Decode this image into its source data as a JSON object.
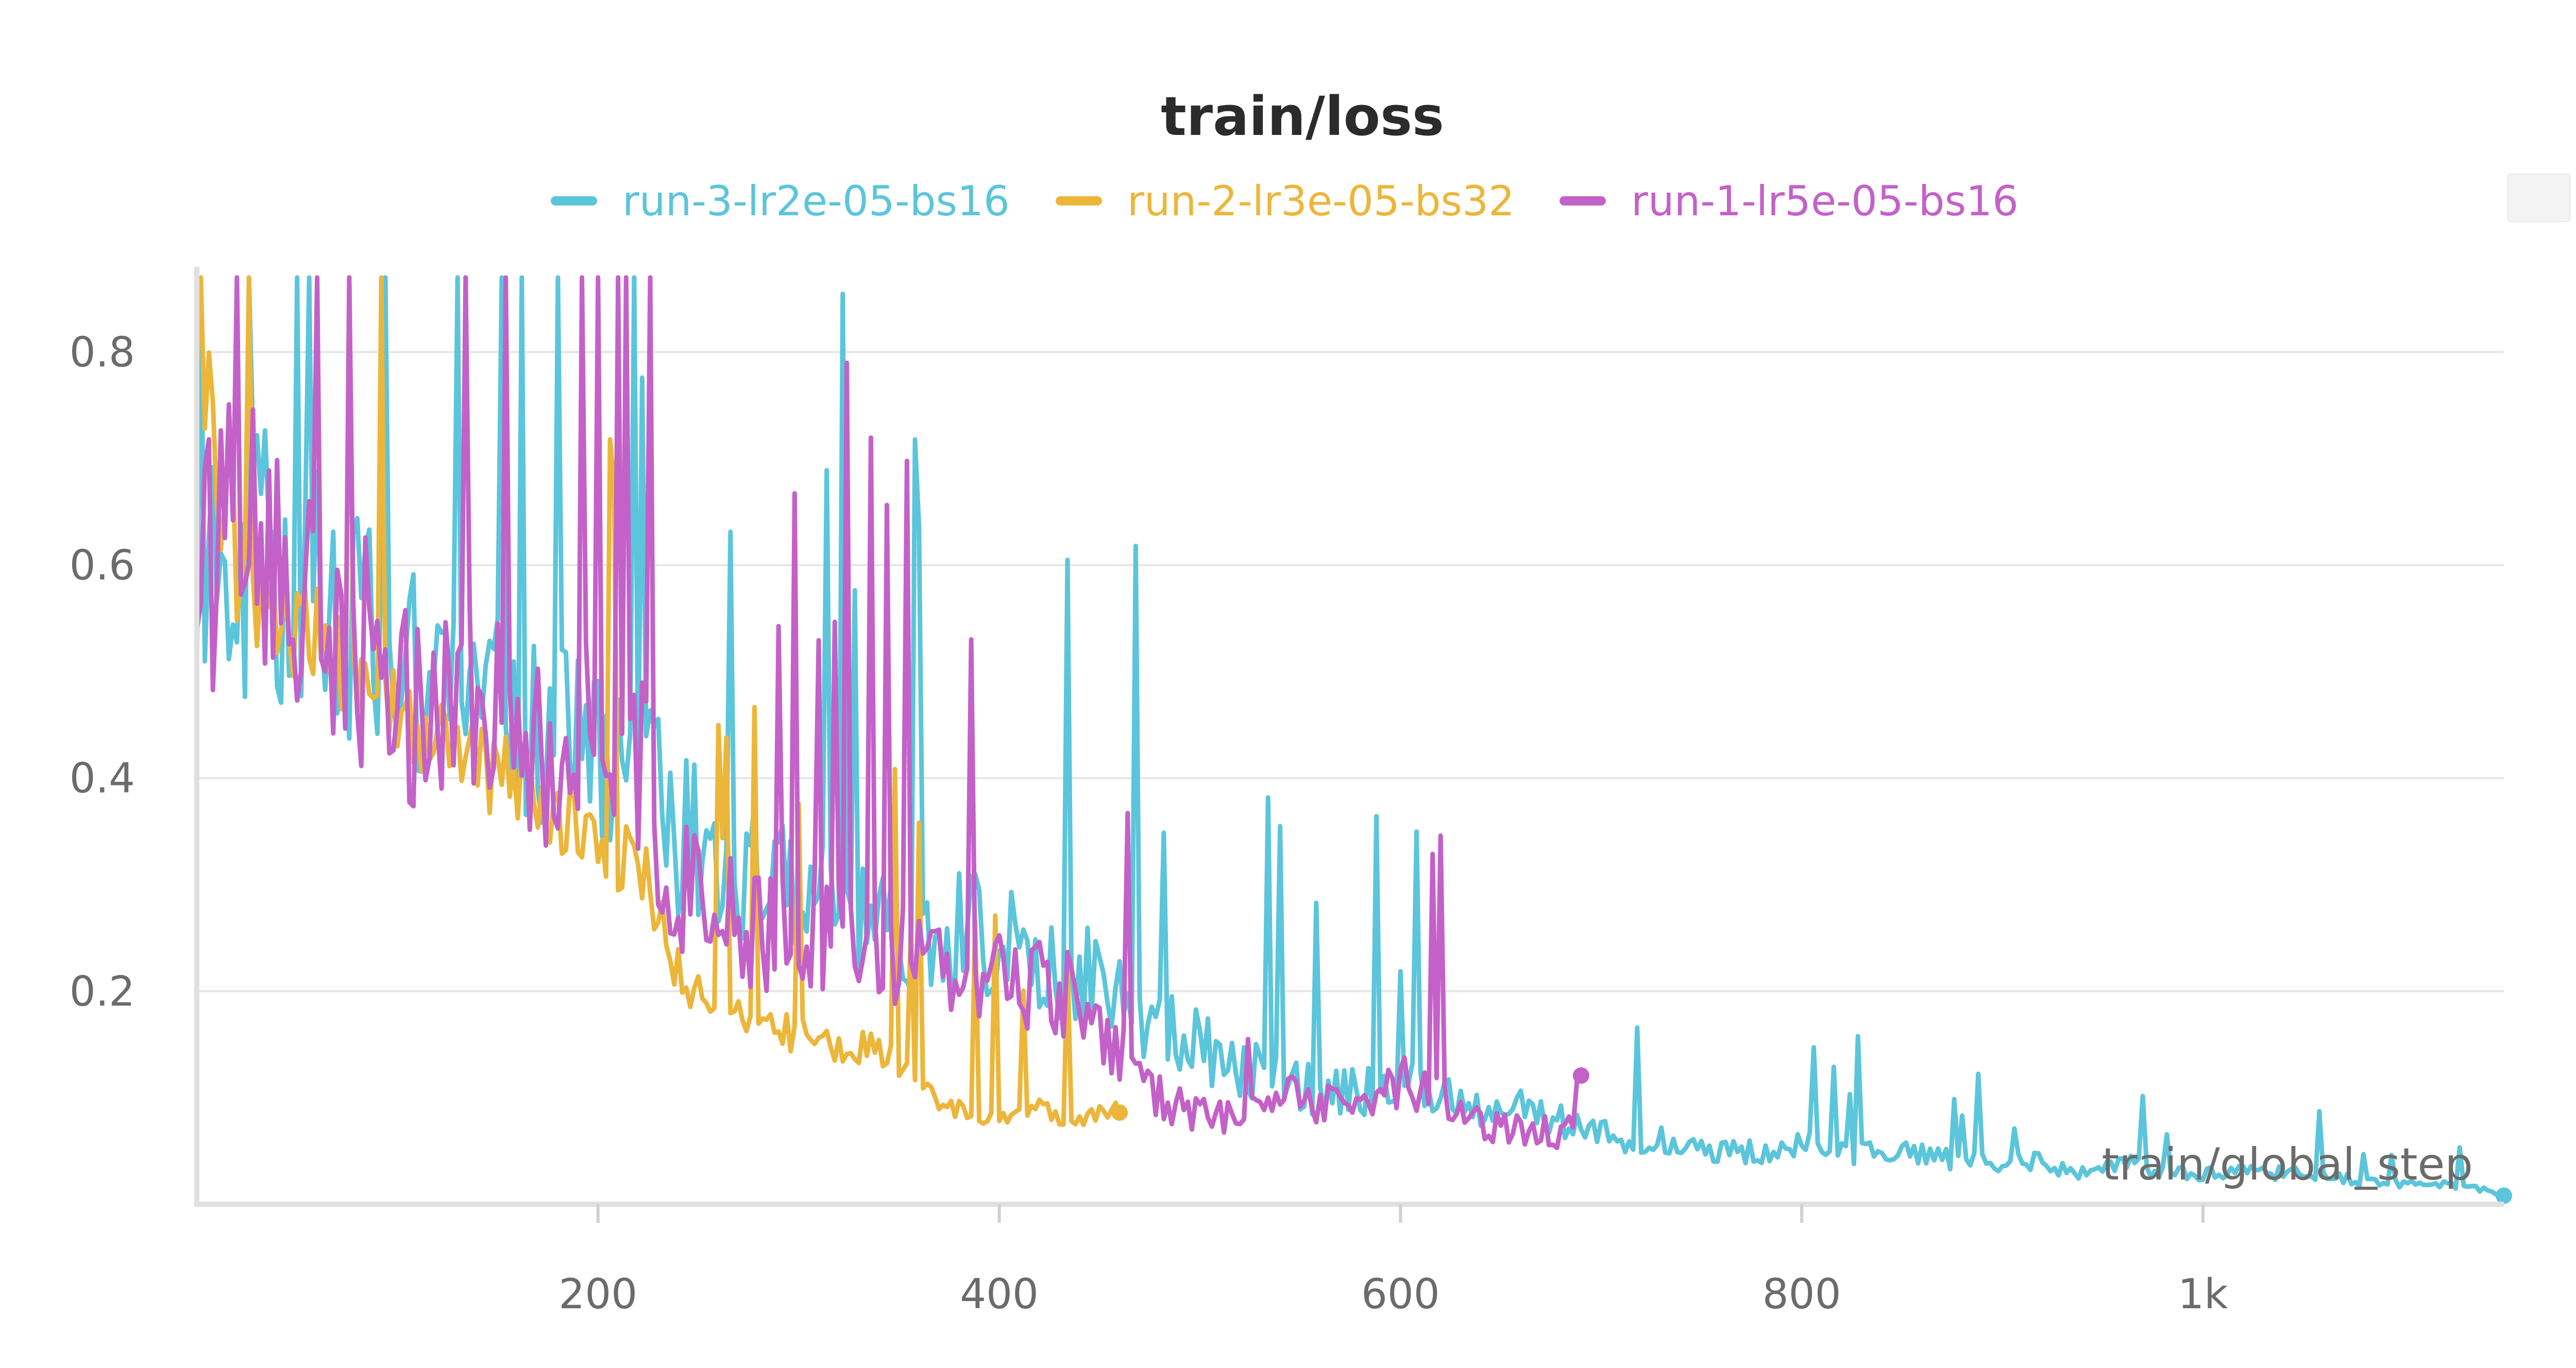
{
  "chart_data": {
    "type": "line",
    "title": "train/loss",
    "xlabel": "train/global_step",
    "ylabel": "",
    "xlim": [
      0,
      1150
    ],
    "ylim": [
      0,
      0.88
    ],
    "x_ticks": [
      200,
      400,
      600,
      800,
      1000
    ],
    "x_tick_labels": [
      "200",
      "400",
      "600",
      "800",
      "1k"
    ],
    "y_ticks": [
      0.2,
      0.4,
      0.6,
      0.8
    ],
    "y_tick_labels": [
      "0.2",
      "0.4",
      "0.6",
      "0.8"
    ],
    "grid": true,
    "legend_position": "top-center",
    "series": [
      {
        "name": "run-3-lr2e-05-bs16",
        "color": "#5bc5db",
        "x": [
          0,
          20,
          40,
          60,
          80,
          100,
          120,
          140,
          160,
          180,
          200,
          220,
          240,
          260,
          280,
          300,
          320,
          340,
          360,
          380,
          400,
          420,
          440,
          460,
          480,
          500,
          520,
          540,
          560,
          580,
          600,
          620,
          640,
          660,
          680,
          700,
          720,
          740,
          760,
          780,
          800,
          820,
          840,
          860,
          880,
          900,
          920,
          940,
          960,
          980,
          1000,
          1020,
          1040,
          1060,
          1080,
          1100,
          1120,
          1150
        ],
        "y": [
          0.62,
          0.63,
          0.6,
          0.58,
          0.54,
          0.52,
          0.5,
          0.47,
          0.45,
          0.44,
          0.42,
          0.4,
          0.36,
          0.33,
          0.32,
          0.29,
          0.3,
          0.27,
          0.26,
          0.27,
          0.25,
          0.23,
          0.22,
          0.2,
          0.17,
          0.15,
          0.13,
          0.12,
          0.11,
          0.11,
          0.12,
          0.1,
          0.09,
          0.09,
          0.08,
          0.07,
          0.06,
          0.06,
          0.05,
          0.05,
          0.06,
          0.05,
          0.05,
          0.05,
          0.04,
          0.04,
          0.04,
          0.03,
          0.04,
          0.03,
          0.03,
          0.03,
          0.03,
          0.03,
          0.02,
          0.02,
          0.02,
          0.01
        ]
      },
      {
        "name": "run-2-lr3e-05-bs32",
        "color": "#ecb63a",
        "x": [
          0,
          10,
          20,
          40,
          60,
          80,
          100,
          120,
          140,
          160,
          180,
          200,
          220,
          240,
          260,
          280,
          300,
          320,
          340,
          360,
          380,
          400,
          420,
          440,
          460
        ],
        "y": [
          0.86,
          0.7,
          0.62,
          0.57,
          0.53,
          0.5,
          0.48,
          0.45,
          0.42,
          0.4,
          0.37,
          0.34,
          0.33,
          0.22,
          0.18,
          0.17,
          0.16,
          0.15,
          0.15,
          0.11,
          0.09,
          0.08,
          0.09,
          0.08,
          0.09
        ]
      },
      {
        "name": "run-1-lr5e-05-bs16",
        "color": "#c361c9",
        "x": [
          0,
          20,
          40,
          60,
          80,
          100,
          120,
          140,
          160,
          180,
          200,
          220,
          240,
          260,
          280,
          300,
          320,
          340,
          360,
          380,
          400,
          420,
          440,
          460,
          480,
          500,
          520,
          540,
          560,
          580,
          600,
          620,
          640,
          660,
          680,
          690
        ],
        "y": [
          0.64,
          0.63,
          0.61,
          0.58,
          0.55,
          0.5,
          0.48,
          0.47,
          0.45,
          0.44,
          0.44,
          0.42,
          0.3,
          0.28,
          0.26,
          0.27,
          0.25,
          0.24,
          0.24,
          0.22,
          0.23,
          0.21,
          0.2,
          0.15,
          0.1,
          0.09,
          0.08,
          0.1,
          0.1,
          0.1,
          0.12,
          0.1,
          0.08,
          0.07,
          0.07,
          0.11
        ]
      }
    ]
  },
  "menu_button": {
    "icon": "menu-icon"
  }
}
